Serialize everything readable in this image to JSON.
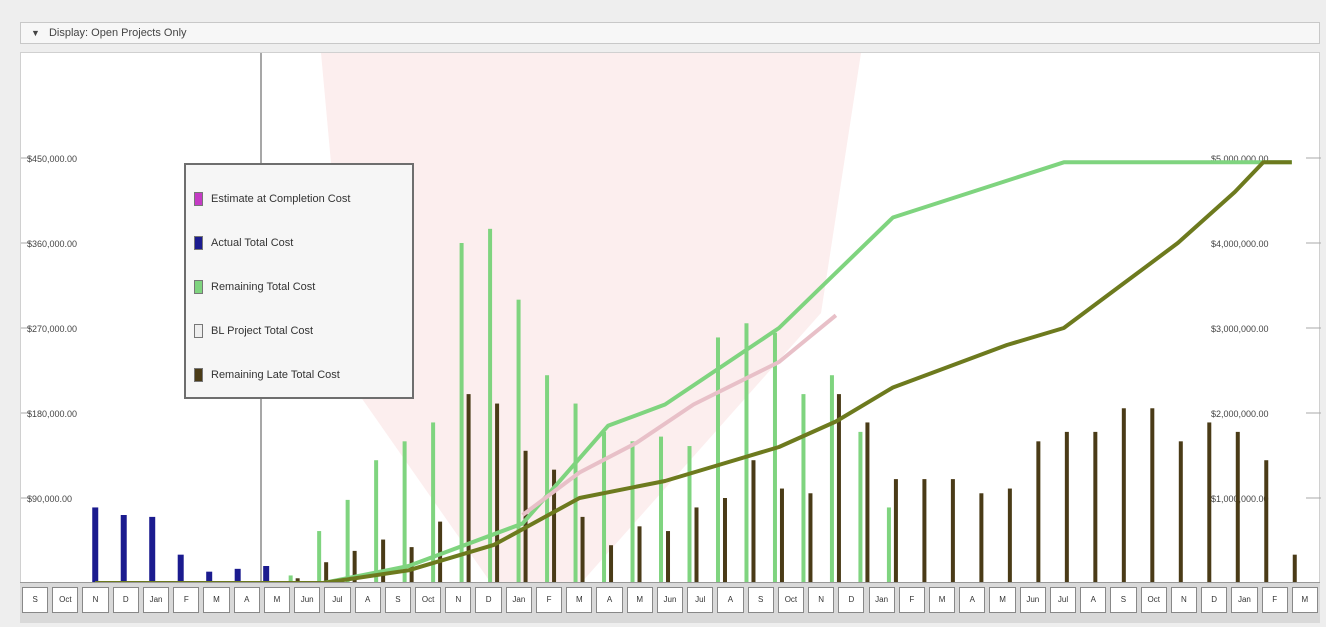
{
  "toolbar": {
    "label": "Display: Open Projects Only"
  },
  "chart_data": {
    "type": "bar",
    "title": "",
    "y_left": {
      "ticks": [
        "$90,000.00",
        "$180,000.00",
        "$270,000.00",
        "$360,000.00",
        "$450,000.00"
      ],
      "range": [
        0,
        540000
      ]
    },
    "y_right": {
      "ticks": [
        "$1,000,000.00",
        "$2,000,000.00",
        "$3,000,000.00",
        "$4,000,000.00",
        "$5,000,000.00"
      ],
      "range": [
        0,
        6000000
      ]
    },
    "legend": [
      {
        "label": "Estimate at Completion Cost",
        "color": "#c43bc4"
      },
      {
        "label": "Actual Total Cost",
        "color": "#1b1b8f"
      },
      {
        "label": "Remaining Total Cost",
        "color": "#7fd47f"
      },
      {
        "label": "BL Project Total Cost",
        "color": "#eeeeee"
      },
      {
        "label": "Remaining Late Total Cost",
        "color": "#4a3b17"
      }
    ],
    "bar_periods": [
      {
        "actual": 80000
      },
      {
        "actual": 72000
      },
      {
        "actual": 70000
      },
      {
        "actual": 30000
      },
      {
        "actual": 12000
      },
      {
        "actual": 15000
      },
      {
        "actual": 18000
      },
      {
        "remaining": 8000,
        "late": 5000
      },
      {
        "remaining": 55000,
        "late": 22000
      },
      {
        "remaining": 88000,
        "late": 34000
      },
      {
        "remaining": 130000,
        "late": 46000
      },
      {
        "remaining": 150000,
        "late": 38000
      },
      {
        "remaining": 170000,
        "late": 65000
      },
      {
        "remaining": 360000,
        "late": 200000
      },
      {
        "remaining": 375000,
        "late": 190000
      },
      {
        "remaining": 300000,
        "late": 140000
      },
      {
        "remaining": 220000,
        "late": 120000
      },
      {
        "remaining": 190000,
        "late": 70000
      },
      {
        "remaining": 160000,
        "late": 40000
      },
      {
        "remaining": 150000,
        "late": 60000
      },
      {
        "remaining": 155000,
        "late": 55000
      },
      {
        "remaining": 145000,
        "late": 80000
      },
      {
        "remaining": 260000,
        "late": 90000
      },
      {
        "remaining": 275000,
        "late": 130000
      },
      {
        "remaining": 265000,
        "late": 100000
      },
      {
        "remaining": 200000,
        "late": 95000
      },
      {
        "remaining": 220000,
        "late": 200000
      },
      {
        "remaining": 160000,
        "late": 170000
      },
      {
        "remaining": 80000,
        "late": 110000
      },
      {
        "late": 110000
      },
      {
        "late": 110000
      },
      {
        "late": 95000
      },
      {
        "late": 100000
      },
      {
        "late": 150000
      },
      {
        "late": 160000
      },
      {
        "late": 160000
      },
      {
        "late": 185000
      },
      {
        "late": 185000
      },
      {
        "late": 150000
      },
      {
        "late": 170000
      },
      {
        "late": 160000
      },
      {
        "late": 130000
      },
      {
        "late": 30000
      }
    ],
    "lines": [
      {
        "name": "Estimate at Completion Cost",
        "color": "#7fd47f",
        "points": [
          [
            0,
            0
          ],
          [
            8,
            0
          ],
          [
            11,
            200000
          ],
          [
            15,
            700000
          ],
          [
            18,
            1850000
          ],
          [
            20,
            2100000
          ],
          [
            24,
            3000000
          ],
          [
            28,
            4300000
          ],
          [
            34,
            4950000
          ],
          [
            42,
            4950000
          ]
        ]
      },
      {
        "name": "BL Project Total Cost",
        "color": "#e8c0c8",
        "points": [
          [
            15,
            800000
          ],
          [
            17,
            1300000
          ],
          [
            19,
            1650000
          ],
          [
            21,
            2100000
          ],
          [
            24,
            2600000
          ],
          [
            26,
            3150000
          ]
        ]
      },
      {
        "name": "Remaining Late Total Cost",
        "color": "#6d7a1e",
        "points": [
          [
            0,
            0
          ],
          [
            8,
            0
          ],
          [
            11,
            150000
          ],
          [
            14,
            450000
          ],
          [
            17,
            1000000
          ],
          [
            20,
            1200000
          ],
          [
            22,
            1400000
          ],
          [
            24,
            1600000
          ],
          [
            26,
            1900000
          ],
          [
            28,
            2300000
          ],
          [
            30,
            2550000
          ],
          [
            32,
            2800000
          ],
          [
            34,
            3000000
          ],
          [
            36,
            3500000
          ],
          [
            38,
            4000000
          ],
          [
            40,
            4600000
          ],
          [
            41,
            4950000
          ],
          [
            42,
            4950000
          ]
        ]
      }
    ],
    "x_tick_labels": [
      "S",
      "Oct",
      "N",
      "D",
      "Jan",
      "F",
      "M",
      "A",
      "M",
      "Jun",
      "Jul",
      "A",
      "S",
      "Oct",
      "N",
      "D",
      "Jan",
      "F",
      "M",
      "A",
      "M",
      "Jun",
      "Jul",
      "A",
      "S",
      "Oct",
      "N",
      "D",
      "Jan",
      "F",
      "M",
      "A",
      "M",
      "Jun",
      "Jul",
      "A",
      "S",
      "Oct",
      "N",
      "D",
      "Jan",
      "F",
      "M"
    ]
  }
}
